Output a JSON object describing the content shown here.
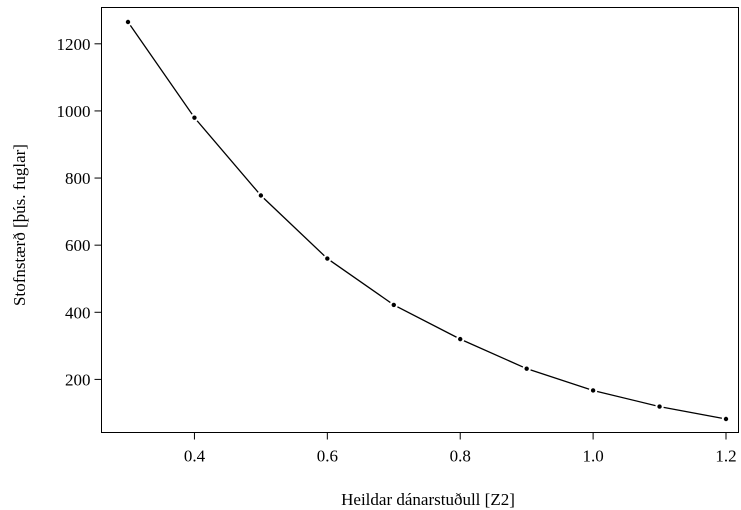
{
  "chart_data": {
    "type": "line",
    "title": "",
    "xlabel": "Heildar dánarstuðull [Z2]",
    "ylabel": "Stofnstærð [þús. fuglar]",
    "xlim": [
      0.3,
      1.2
    ],
    "ylim": [
      80,
      1265
    ],
    "xticks": [
      {
        "value": 0.4,
        "label": "0.4"
      },
      {
        "value": 0.6,
        "label": "0.6"
      },
      {
        "value": 0.8,
        "label": "0.8"
      },
      {
        "value": 1.0,
        "label": "1.0"
      },
      {
        "value": 1.2,
        "label": "1.2"
      }
    ],
    "yticks": [
      {
        "value": 200,
        "label": "200"
      },
      {
        "value": 400,
        "label": "400"
      },
      {
        "value": 600,
        "label": "600"
      },
      {
        "value": 800,
        "label": "800"
      },
      {
        "value": 1000,
        "label": "1000"
      },
      {
        "value": 1200,
        "label": "1200"
      }
    ],
    "grid": false,
    "series": [
      {
        "color": "#000000",
        "x": [
          0.3,
          0.4,
          0.5,
          0.6,
          0.7,
          0.8,
          0.9,
          1.0,
          1.1,
          1.2
        ],
        "y": [
          1265,
          980,
          748,
          560,
          422,
          320,
          232,
          167,
          119,
          82
        ]
      }
    ]
  }
}
